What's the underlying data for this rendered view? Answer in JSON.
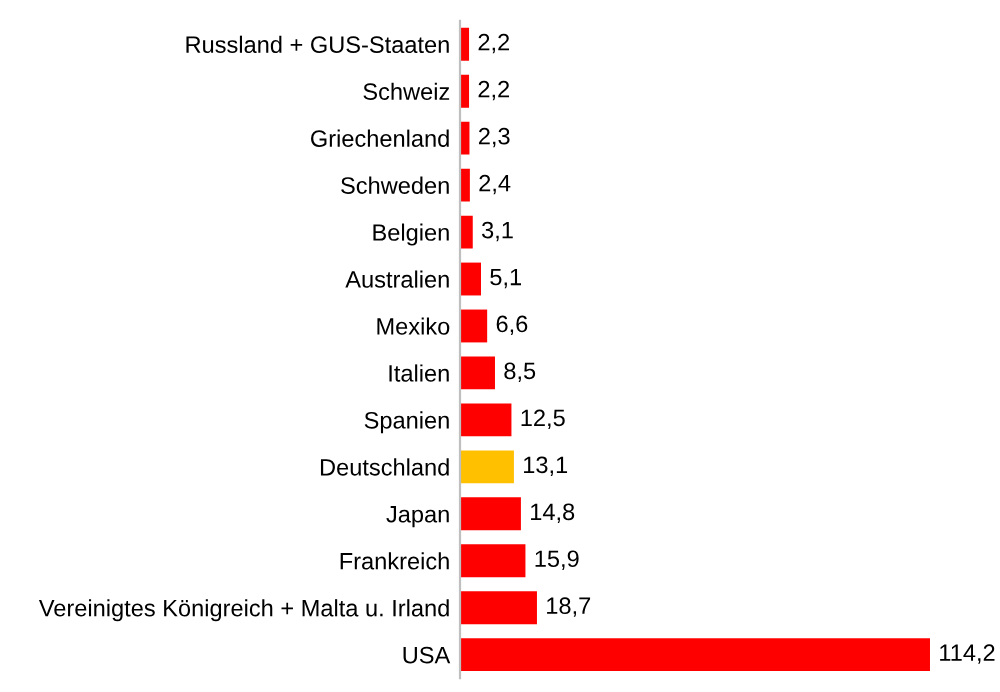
{
  "chart_data": {
    "type": "bar",
    "orientation": "horizontal",
    "categories": [
      "Russland + GUS-Staaten",
      "Schweiz",
      "Griechenland",
      "Schweden",
      "Belgien",
      "Australien",
      "Mexiko",
      "Italien",
      "Spanien",
      "Deutschland",
      "Japan",
      "Frankreich",
      "Vereinigtes Königreich + Malta u. Irland",
      "USA"
    ],
    "values": [
      2.2,
      2.2,
      2.3,
      2.4,
      3.1,
      5.1,
      6.6,
      8.5,
      12.5,
      13.1,
      14.8,
      15.9,
      18.7,
      114.2
    ],
    "colors": [
      "#ff0000",
      "#ff0000",
      "#ff0000",
      "#ff0000",
      "#ff0000",
      "#ff0000",
      "#ff0000",
      "#ff0000",
      "#ff0000",
      "#ffc000",
      "#ff0000",
      "#ff0000",
      "#ff0000",
      "#ff0000"
    ],
    "value_labels": [
      "2,2",
      "2,2",
      "2,3",
      "2,4",
      "3,1",
      "5,1",
      "6,6",
      "8,5",
      "12,5",
      "13,1",
      "14,8",
      "15,9",
      "18,7",
      "114,2"
    ],
    "tick_labels": "y",
    "grid": false,
    "legend": false
  }
}
